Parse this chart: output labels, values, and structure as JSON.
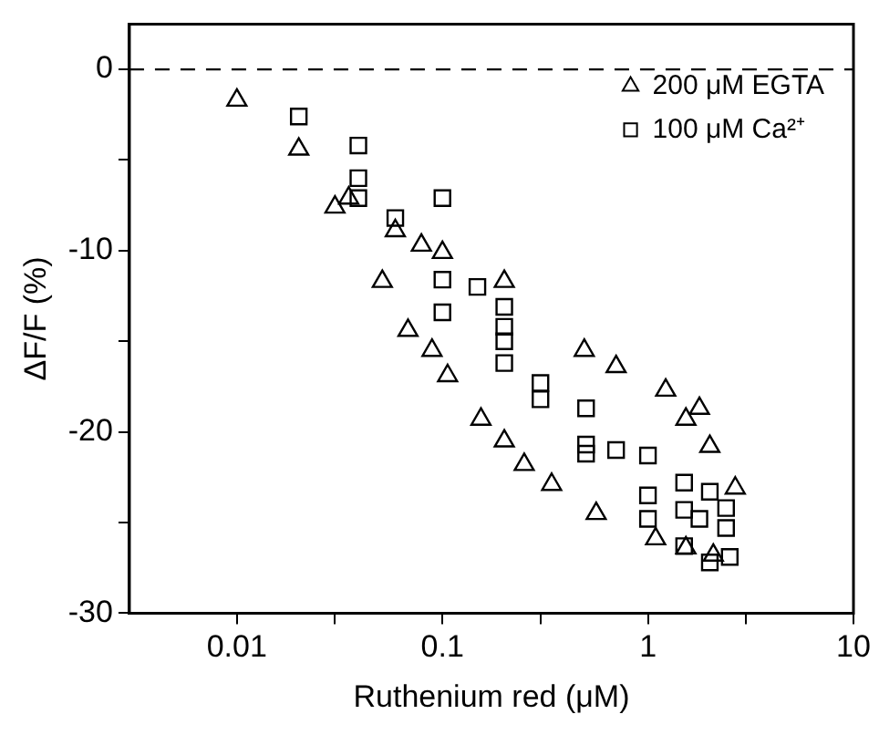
{
  "chart_data": {
    "type": "scatter",
    "xlabel": "Ruthenium red (μM)",
    "ylabel": "ΔF/F (%)",
    "log": "x",
    "xlim": [
      0.003,
      10
    ],
    "xticks": [
      0.01,
      {
        "value": 0.03,
        "label": null
      },
      0.1,
      {
        "value": 0.3,
        "label": null
      },
      1,
      {
        "value": 3,
        "label": null
      },
      10
    ],
    "ylim": [
      -30,
      2.5
    ],
    "yticks": [
      -30,
      {
        "value": -25,
        "label": null
      },
      -20,
      {
        "value": -15,
        "label": null
      },
      -10,
      {
        "value": -5,
        "label": null
      },
      0
    ],
    "grid": false,
    "legend": "top right",
    "ref_lines": [
      {
        "axis": "y",
        "value": 0,
        "color": "#000000",
        "line_style": "dashed"
      }
    ],
    "series": [
      {
        "name": "200 μM EGTA",
        "color": "#000000",
        "marker": "triangle",
        "x": [
          0.01,
          0.02,
          0.03,
          0.035,
          0.059,
          0.079,
          0.1,
          0.051,
          0.2,
          0.068,
          0.089,
          0.106,
          0.154,
          0.2,
          0.25,
          0.34,
          0.56,
          0.49,
          0.7,
          1.22,
          1.53,
          1.78,
          2.0,
          2.66,
          1.09,
          1.53,
          2.08
        ],
        "values": [
          -1.7,
          -4.4,
          -7.6,
          -7.1,
          -8.9,
          -9.7,
          -10.1,
          -11.7,
          -11.7,
          -14.4,
          -15.5,
          -16.9,
          -19.3,
          -20.5,
          -21.8,
          -22.9,
          -24.5,
          -15.5,
          -16.4,
          -17.7,
          -19.3,
          -18.7,
          -20.8,
          -23.1,
          -25.9,
          -26.4,
          -26.8
        ]
      },
      {
        "name": "100 μM Ca²⁺",
        "color": "#000000",
        "marker": "square",
        "x": [
          0.02,
          0.039,
          0.039,
          0.039,
          0.1,
          0.059,
          0.1,
          0.1,
          0.148,
          0.2,
          0.2,
          0.2,
          0.2,
          0.3,
          0.3,
          0.5,
          0.5,
          0.5,
          0.7,
          1.0,
          1.0,
          1.0,
          1.5,
          1.5,
          2.0,
          1.78,
          2.4,
          2.4,
          2.0,
          2.5,
          1.5
        ],
        "values": [
          -2.6,
          -4.2,
          -6.0,
          -7.1,
          -7.1,
          -8.2,
          -11.6,
          -13.4,
          -12.0,
          -13.1,
          -14.2,
          -15.0,
          -16.2,
          -17.3,
          -18.2,
          -18.7,
          -20.7,
          -21.2,
          -21.0,
          -21.3,
          -23.5,
          -24.8,
          -22.8,
          -24.3,
          -23.3,
          -24.8,
          -24.2,
          -25.3,
          -27.2,
          -26.9,
          -26.3
        ]
      }
    ]
  }
}
